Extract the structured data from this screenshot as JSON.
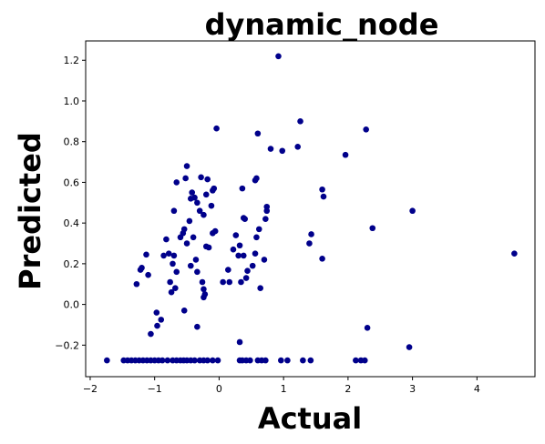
{
  "chart_data": {
    "type": "scatter",
    "title": "dynamic_node",
    "xlabel": "Actual",
    "ylabel": "Predicted",
    "xlim": [
      -2.07,
      4.9
    ],
    "ylim": [
      -0.355,
      1.295
    ],
    "xticks": [
      -2,
      -1,
      0,
      1,
      2,
      3,
      4
    ],
    "xtick_labels": [
      "−2",
      "−1",
      "0",
      "1",
      "2",
      "3",
      "4"
    ],
    "yticks": [
      -0.2,
      0.0,
      0.2,
      0.4,
      0.6,
      0.8,
      1.0,
      1.2
    ],
    "ytick_labels": [
      "−0.2",
      "0.0",
      "0.2",
      "0.4",
      "0.6",
      "0.8",
      "1.0",
      "1.2"
    ],
    "grid": false,
    "marker_color": "#00008b",
    "series": [
      {
        "points": [
          [
            -1.74,
            -0.275
          ],
          [
            -1.48,
            -0.275
          ],
          [
            -1.42,
            -0.275
          ],
          [
            -1.36,
            -0.275
          ],
          [
            -1.3,
            -0.275
          ],
          [
            -1.24,
            -0.275
          ],
          [
            -1.18,
            -0.275
          ],
          [
            -1.12,
            -0.275
          ],
          [
            -1.06,
            -0.275
          ],
          [
            -1.0,
            -0.275
          ],
          [
            -0.94,
            -0.275
          ],
          [
            -0.88,
            -0.275
          ],
          [
            -0.8,
            -0.275
          ],
          [
            -0.72,
            -0.275
          ],
          [
            -0.66,
            -0.275
          ],
          [
            -0.6,
            -0.275
          ],
          [
            -0.55,
            -0.275
          ],
          [
            -0.5,
            -0.275
          ],
          [
            -0.44,
            -0.275
          ],
          [
            -0.38,
            -0.275
          ],
          [
            -0.3,
            -0.275
          ],
          [
            -0.24,
            -0.275
          ],
          [
            -0.18,
            -0.275
          ],
          [
            -0.1,
            -0.275
          ],
          [
            -0.02,
            -0.275
          ],
          [
            0.32,
            -0.275
          ],
          [
            0.36,
            -0.275
          ],
          [
            0.42,
            -0.275
          ],
          [
            0.48,
            -0.275
          ],
          [
            0.6,
            -0.275
          ],
          [
            0.66,
            -0.275
          ],
          [
            0.72,
            -0.275
          ],
          [
            0.96,
            -0.275
          ],
          [
            1.06,
            -0.275
          ],
          [
            1.3,
            -0.275
          ],
          [
            1.42,
            -0.275
          ],
          [
            2.12,
            -0.275
          ],
          [
            2.2,
            -0.275
          ],
          [
            2.26,
            -0.275
          ],
          [
            -1.06,
            -0.145
          ],
          [
            -0.96,
            -0.105
          ],
          [
            -0.97,
            -0.04
          ],
          [
            -0.9,
            -0.075
          ],
          [
            -0.34,
            -0.11
          ],
          [
            -0.54,
            -0.03
          ],
          [
            0.32,
            -0.185
          ],
          [
            2.3,
            -0.115
          ],
          [
            2.95,
            -0.21
          ],
          [
            -1.28,
            0.1
          ],
          [
            -1.22,
            0.17
          ],
          [
            -1.2,
            0.18
          ],
          [
            -1.1,
            0.145
          ],
          [
            -1.13,
            0.245
          ],
          [
            -0.86,
            0.24
          ],
          [
            -0.82,
            0.32
          ],
          [
            -0.78,
            0.25
          ],
          [
            -0.76,
            0.11
          ],
          [
            -0.74,
            0.06
          ],
          [
            -0.72,
            0.2
          ],
          [
            -0.7,
            0.24
          ],
          [
            -0.68,
            0.08
          ],
          [
            -0.66,
            0.16
          ],
          [
            -0.6,
            0.33
          ],
          [
            -0.56,
            0.35
          ],
          [
            -0.5,
            0.3
          ],
          [
            -0.44,
            0.19
          ],
          [
            -0.4,
            0.33
          ],
          [
            -0.36,
            0.22
          ],
          [
            -0.34,
            0.16
          ],
          [
            -0.26,
            0.11
          ],
          [
            -0.24,
            0.075
          ],
          [
            -0.24,
            0.035
          ],
          [
            -0.22,
            0.05
          ],
          [
            -0.2,
            0.285
          ],
          [
            -0.16,
            0.28
          ],
          [
            -0.1,
            0.35
          ],
          [
            -0.06,
            0.36
          ],
          [
            0.06,
            0.11
          ],
          [
            0.14,
            0.17
          ],
          [
            0.16,
            0.11
          ],
          [
            0.22,
            0.27
          ],
          [
            0.26,
            0.34
          ],
          [
            0.3,
            0.24
          ],
          [
            0.32,
            0.29
          ],
          [
            0.34,
            0.11
          ],
          [
            0.38,
            0.24
          ],
          [
            0.42,
            0.13
          ],
          [
            0.44,
            0.165
          ],
          [
            0.52,
            0.19
          ],
          [
            0.56,
            0.25
          ],
          [
            0.64,
            0.08
          ],
          [
            0.7,
            0.22
          ],
          [
            0.58,
            0.33
          ],
          [
            0.62,
            0.37
          ],
          [
            0.72,
            0.42
          ],
          [
            0.74,
            0.46
          ],
          [
            0.74,
            0.48
          ],
          [
            1.4,
            0.3
          ],
          [
            1.43,
            0.345
          ],
          [
            1.6,
            0.225
          ],
          [
            -0.7,
            0.46
          ],
          [
            -0.66,
            0.6
          ],
          [
            -0.54,
            0.37
          ],
          [
            -0.46,
            0.41
          ],
          [
            -0.42,
            0.55
          ],
          [
            -0.38,
            0.525
          ],
          [
            -0.34,
            0.5
          ],
          [
            -0.3,
            0.46
          ],
          [
            -0.24,
            0.44
          ],
          [
            -0.2,
            0.54
          ],
          [
            -0.18,
            0.615
          ],
          [
            -0.12,
            0.485
          ],
          [
            -0.1,
            0.56
          ],
          [
            -0.08,
            0.57
          ],
          [
            -0.5,
            0.68
          ],
          [
            -0.44,
            0.52
          ],
          [
            -0.28,
            0.625
          ],
          [
            -0.52,
            0.62
          ],
          [
            0.36,
            0.57
          ],
          [
            0.38,
            0.425
          ],
          [
            0.4,
            0.42
          ],
          [
            0.56,
            0.61
          ],
          [
            0.58,
            0.62
          ],
          [
            1.6,
            0.565
          ],
          [
            1.62,
            0.53
          ],
          [
            2.38,
            0.375
          ],
          [
            3.0,
            0.46
          ],
          [
            4.58,
            0.25
          ],
          [
            -0.04,
            0.865
          ],
          [
            0.6,
            0.84
          ],
          [
            0.8,
            0.765
          ],
          [
            0.98,
            0.755
          ],
          [
            1.22,
            0.775
          ],
          [
            1.96,
            0.735
          ],
          [
            2.28,
            0.86
          ],
          [
            1.26,
            0.9
          ],
          [
            0.92,
            1.22
          ]
        ]
      }
    ]
  }
}
